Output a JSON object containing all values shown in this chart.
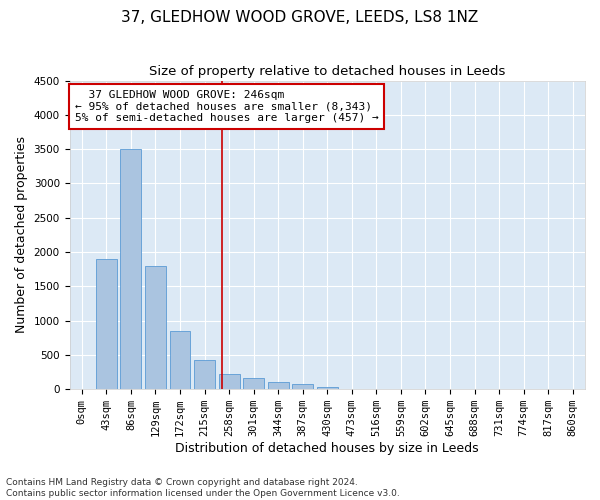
{
  "title": "37, GLEDHOW WOOD GROVE, LEEDS, LS8 1NZ",
  "subtitle": "Size of property relative to detached houses in Leeds",
  "xlabel": "Distribution of detached houses by size in Leeds",
  "ylabel": "Number of detached properties",
  "footer_line1": "Contains HM Land Registry data © Crown copyright and database right 2024.",
  "footer_line2": "Contains public sector information licensed under the Open Government Licence v3.0.",
  "bar_labels": [
    "0sqm",
    "43sqm",
    "86sqm",
    "129sqm",
    "172sqm",
    "215sqm",
    "258sqm",
    "301sqm",
    "344sqm",
    "387sqm",
    "430sqm",
    "473sqm",
    "516sqm",
    "559sqm",
    "602sqm",
    "645sqm",
    "688sqm",
    "731sqm",
    "774sqm",
    "817sqm",
    "860sqm"
  ],
  "bar_values": [
    10,
    1900,
    3500,
    1800,
    850,
    420,
    220,
    160,
    100,
    80,
    30,
    0,
    0,
    0,
    0,
    0,
    0,
    0,
    0,
    0,
    0
  ],
  "bar_color": "#aac4e0",
  "bar_edge_color": "#5b9bd5",
  "annotation_box_text": "  37 GLEDHOW WOOD GROVE: 246sqm\n← 95% of detached houses are smaller (8,343)\n5% of semi-detached houses are larger (457) →",
  "annotation_box_color": "#ffffff",
  "annotation_box_edge_color": "#cc0000",
  "vline_color": "#cc0000",
  "ylim": [
    0,
    4500
  ],
  "yticks": [
    0,
    500,
    1000,
    1500,
    2000,
    2500,
    3000,
    3500,
    4000,
    4500
  ],
  "background_color": "#dce9f5",
  "title_fontsize": 11,
  "subtitle_fontsize": 9.5,
  "axis_label_fontsize": 9,
  "tick_fontsize": 7.5,
  "annotation_fontsize": 8
}
